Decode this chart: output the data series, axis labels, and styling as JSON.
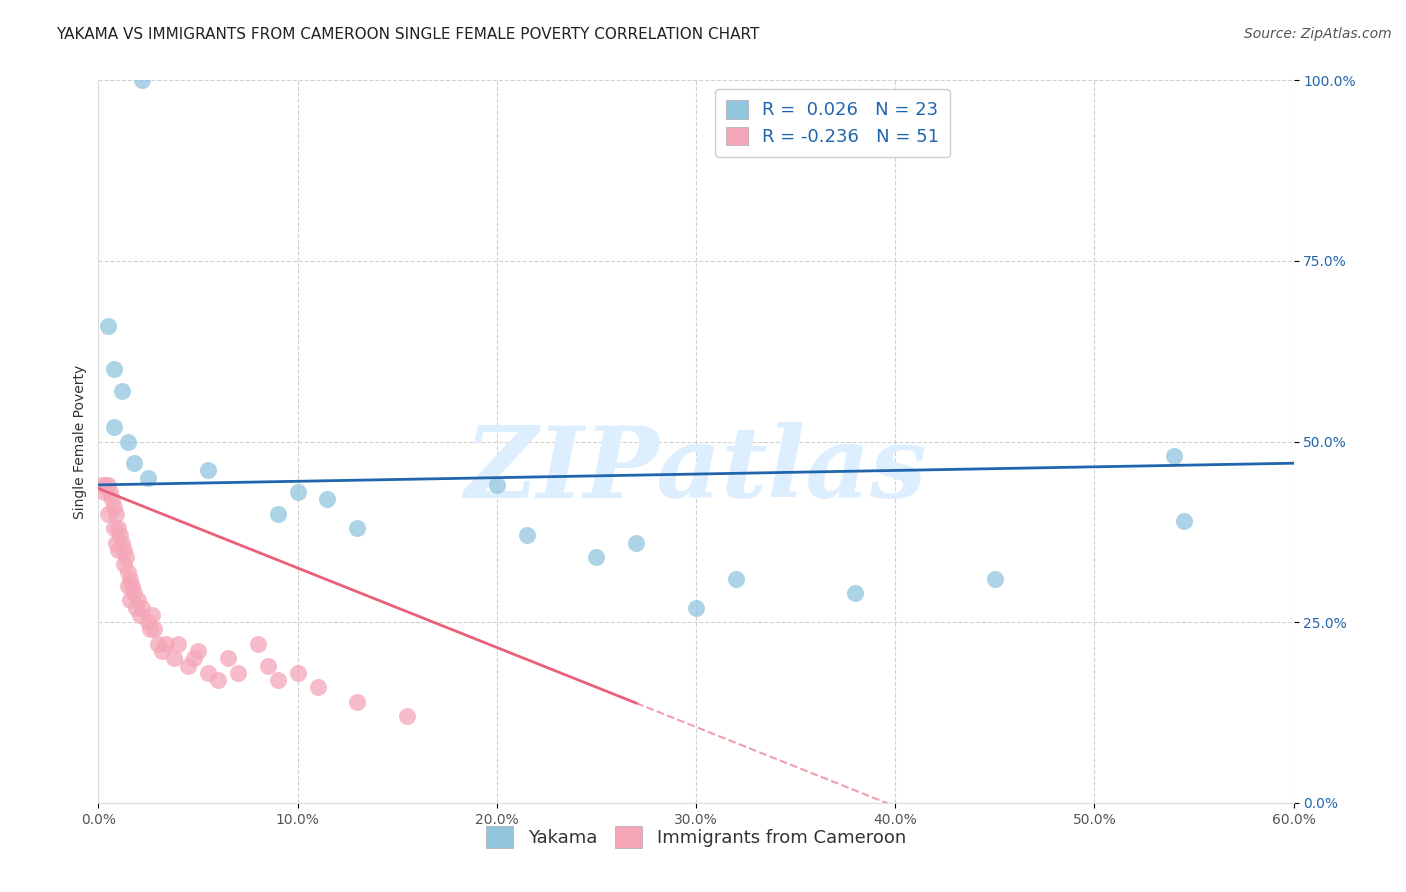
{
  "title": "YAKAMA VS IMMIGRANTS FROM CAMEROON SINGLE FEMALE POVERTY CORRELATION CHART",
  "source": "Source: ZipAtlas.com",
  "ylabel": "Single Female Poverty",
  "xlim": [
    0.0,
    0.6
  ],
  "ylim": [
    0.0,
    1.0
  ],
  "xticks": [
    0.0,
    0.1,
    0.2,
    0.3,
    0.4,
    0.5,
    0.6
  ],
  "xtick_labels": [
    "0.0%",
    "10.0%",
    "20.0%",
    "30.0%",
    "40.0%",
    "50.0%",
    "60.0%"
  ],
  "yticks": [
    0.0,
    0.25,
    0.5,
    0.75,
    1.0
  ],
  "ytick_labels": [
    "0.0%",
    "25.0%",
    "50.0%",
    "75.0%",
    "100.0%"
  ],
  "blue_x": [
    0.022,
    0.005,
    0.008,
    0.012,
    0.008,
    0.015,
    0.018,
    0.025,
    0.055,
    0.09,
    0.1,
    0.115,
    0.13,
    0.2,
    0.215,
    0.27,
    0.32,
    0.38,
    0.45,
    0.54,
    0.545,
    0.3,
    0.25
  ],
  "blue_y": [
    1.0,
    0.66,
    0.6,
    0.57,
    0.52,
    0.5,
    0.47,
    0.45,
    0.46,
    0.4,
    0.43,
    0.42,
    0.38,
    0.44,
    0.37,
    0.36,
    0.31,
    0.29,
    0.31,
    0.48,
    0.39,
    0.27,
    0.34
  ],
  "pink_x": [
    0.002,
    0.003,
    0.004,
    0.005,
    0.005,
    0.006,
    0.007,
    0.008,
    0.008,
    0.009,
    0.009,
    0.01,
    0.01,
    0.011,
    0.012,
    0.013,
    0.013,
    0.014,
    0.015,
    0.015,
    0.016,
    0.016,
    0.017,
    0.018,
    0.019,
    0.02,
    0.021,
    0.022,
    0.025,
    0.026,
    0.027,
    0.028,
    0.03,
    0.032,
    0.034,
    0.038,
    0.04,
    0.045,
    0.048,
    0.05,
    0.055,
    0.06,
    0.065,
    0.07,
    0.08,
    0.085,
    0.09,
    0.1,
    0.11,
    0.13,
    0.155
  ],
  "pink_y": [
    0.44,
    0.43,
    0.44,
    0.44,
    0.4,
    0.43,
    0.42,
    0.41,
    0.38,
    0.4,
    0.36,
    0.38,
    0.35,
    0.37,
    0.36,
    0.35,
    0.33,
    0.34,
    0.32,
    0.3,
    0.31,
    0.28,
    0.3,
    0.29,
    0.27,
    0.28,
    0.26,
    0.27,
    0.25,
    0.24,
    0.26,
    0.24,
    0.22,
    0.21,
    0.22,
    0.2,
    0.22,
    0.19,
    0.2,
    0.21,
    0.18,
    0.17,
    0.2,
    0.18,
    0.22,
    0.19,
    0.17,
    0.18,
    0.16,
    0.14,
    0.12
  ],
  "blue_R": 0.026,
  "blue_N": 23,
  "pink_R": -0.236,
  "pink_N": 51,
  "blue_color": "#92c5de",
  "pink_color": "#f4a6b8",
  "blue_line_color": "#2166ac",
  "pink_line_color": "#e8607a",
  "pink_line_solid_end": 0.27,
  "watermark": "ZIPatlas",
  "watermark_color": "#ddeeff",
  "legend_label_blue": "Yakama",
  "legend_label_pink": "Immigrants from Cameroon",
  "background_color": "#ffffff",
  "grid_color": "#cccccc",
  "title_fontsize": 11,
  "axis_label_fontsize": 10,
  "tick_fontsize": 10,
  "legend_fontsize": 13,
  "source_fontsize": 10,
  "blue_line_intercept": 0.44,
  "blue_line_slope": 0.05,
  "pink_line_intercept": 0.435,
  "pink_line_slope": -1.1
}
